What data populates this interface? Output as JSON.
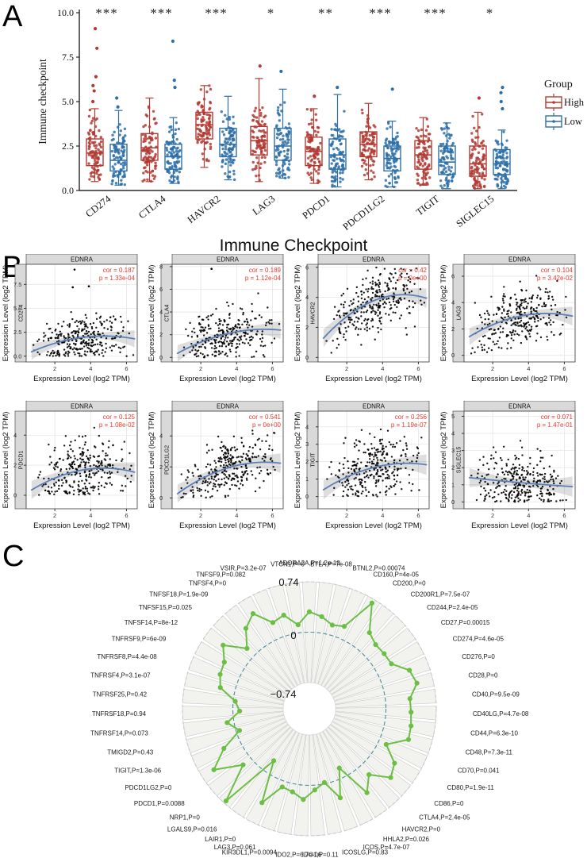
{
  "figure": {
    "panel_a_label": "A",
    "panel_b_label": "B",
    "panel_c_label": "C"
  },
  "chart_data": [
    {
      "panel": "A",
      "type": "box",
      "ylabel": "Immune checkpoint",
      "ylim": [
        0,
        10
      ],
      "ytick_labels": [
        "0.0",
        "2.5",
        "5.0",
        "7.5",
        "10.0"
      ],
      "ytick_values": [
        0,
        2.5,
        5,
        7.5,
        10
      ],
      "categories": [
        "CD274",
        "CTLA4",
        "HAVCR2",
        "LAG3",
        "PDCD1",
        "PDCD1LG2",
        "TIGIT",
        "SIGLEC15"
      ],
      "significance": [
        "***",
        "***",
        "***",
        "*",
        "**",
        "***",
        "***",
        "*"
      ],
      "legend": {
        "title": "Group",
        "items": [
          {
            "label": "High",
            "color": "#B23A32"
          },
          {
            "label": "Low",
            "color": "#2D6FA8"
          }
        ]
      },
      "series": [
        {
          "name": "High",
          "color": "#B23A32",
          "boxes": [
            {
              "q1": 1.4,
              "med": 2.1,
              "q3": 2.9,
              "lo": 0.5,
              "hi": 4.6,
              "outliers": [
                5.0,
                5.6,
                5.9,
                6.4,
                8.0,
                9.1
              ]
            },
            {
              "q1": 1.7,
              "med": 2.4,
              "q3": 3.2,
              "lo": 0.5,
              "hi": 5.2,
              "outliers": []
            },
            {
              "q1": 2.9,
              "med": 3.7,
              "q3": 4.4,
              "lo": 1.3,
              "hi": 5.9,
              "outliers": []
            },
            {
              "q1": 2.0,
              "med": 2.8,
              "q3": 3.6,
              "lo": 0.5,
              "hi": 6.3,
              "outliers": [
                7.0
              ]
            },
            {
              "q1": 1.4,
              "med": 2.2,
              "q3": 3.0,
              "lo": 0.4,
              "hi": 4.6,
              "outliers": [
                5.3
              ]
            },
            {
              "q1": 1.9,
              "med": 2.6,
              "q3": 3.3,
              "lo": 0.6,
              "hi": 4.9,
              "outliers": []
            },
            {
              "q1": 1.2,
              "med": 2.0,
              "q3": 2.8,
              "lo": 0.3,
              "hi": 4.1,
              "outliers": []
            },
            {
              "q1": 0.8,
              "med": 1.5,
              "q3": 2.5,
              "lo": 0.1,
              "hi": 4.4,
              "outliers": [
                5.2
              ]
            }
          ]
        },
        {
          "name": "Low",
          "color": "#2D6FA8",
          "boxes": [
            {
              "q1": 1.1,
              "med": 1.7,
              "q3": 2.6,
              "lo": 0.3,
              "hi": 4.5,
              "outliers": [
                4.7,
                5.2
              ]
            },
            {
              "q1": 1.2,
              "med": 1.9,
              "q3": 2.6,
              "lo": 0.4,
              "hi": 4.1,
              "outliers": [
                5.8,
                6.2,
                8.4
              ]
            },
            {
              "q1": 1.9,
              "med": 2.6,
              "q3": 3.5,
              "lo": 0.6,
              "hi": 5.3,
              "outliers": []
            },
            {
              "q1": 1.7,
              "med": 2.5,
              "q3": 3.5,
              "lo": 0.7,
              "hi": 5.7,
              "outliers": [
                6.7
              ]
            },
            {
              "q1": 1.2,
              "med": 2.0,
              "q3": 2.9,
              "lo": 0.2,
              "hi": 5.4,
              "outliers": [
                5.8
              ]
            },
            {
              "q1": 1.1,
              "med": 1.8,
              "q3": 2.5,
              "lo": 0.2,
              "hi": 3.9,
              "outliers": [
                5.7
              ]
            },
            {
              "q1": 0.9,
              "med": 1.6,
              "q3": 2.5,
              "lo": 0.1,
              "hi": 3.8,
              "outliers": []
            },
            {
              "q1": 0.9,
              "med": 1.5,
              "q3": 2.3,
              "lo": 0.1,
              "hi": 3.4,
              "outliers": [
                4.6,
                5.0,
                5.5,
                5.8
              ]
            }
          ]
        }
      ]
    },
    {
      "panel": "B",
      "type": "scatter",
      "title": "Immune Checkpoint",
      "facet_label": "EDNRA",
      "xlabel": "Expression Level (log2 TPM)",
      "ylabel": "Expression Level (log2 TPM)",
      "xticks": [
        2,
        4,
        6
      ],
      "xlim": [
        0.4,
        6.6
      ],
      "annotation_color": "#E8392C",
      "point_color": "#000000",
      "trend_color": "#5C7FB5",
      "plots": [
        {
          "gene": "CD274",
          "cor": 0.187,
          "p": "1.33e-04",
          "cor_label": "cor = 0.187",
          "p_label": "p = 1.33e-04",
          "ylim": [
            -0.6,
            9.6
          ],
          "yticks": [
            0,
            2.5,
            5,
            7.5
          ],
          "ytick_labels": [
            "0.0",
            "2.5",
            "5.0",
            "7.5"
          ],
          "trend": [
            -0.15,
            0.95,
            -0.1
          ],
          "noise": 1.05,
          "extras": [
            [
              3.1,
              9.05
            ],
            [
              3.0,
              7.2
            ],
            [
              3.9,
              7.3
            ]
          ]
        },
        {
          "gene": "CTLA4",
          "cor": 0.189,
          "p": "1.12e-04",
          "cor_label": "cor = 0.189",
          "p_label": "p = 1.12e-04",
          "ylim": [
            -0.4,
            8.2
          ],
          "yticks": [
            0,
            2,
            4,
            6,
            8
          ],
          "ytick_labels": [
            "0",
            "2",
            "4",
            "6",
            "8"
          ],
          "trend": [
            -0.3,
            1.0,
            -0.09
          ],
          "noise": 1.05,
          "extras": [
            [
              2.6,
              7.8
            ]
          ]
        },
        {
          "gene": "HAVCR2",
          "cor": 0.42,
          "p": "0e+00",
          "cor_label": "cor = 0.42",
          "p_label": "p = 0e+00",
          "ylim": [
            -0.3,
            6.2
          ],
          "yticks": [
            0,
            2,
            4,
            6
          ],
          "ytick_labels": [
            "0",
            "2",
            "4",
            "6"
          ],
          "trend": [
            0.3,
            1.5,
            -0.145
          ],
          "noise": 1.0,
          "extras": []
        },
        {
          "gene": "LAG3",
          "cor": 0.104,
          "p": "3.42e-02",
          "cor_label": "cor = 0.104",
          "p_label": "p = 3.42e-02",
          "ylim": [
            -0.5,
            6.9
          ],
          "yticks": [
            0,
            2,
            4,
            6
          ],
          "ytick_labels": [
            "0",
            "2",
            "4",
            "6"
          ],
          "trend": [
            0.8,
            0.95,
            -0.095
          ],
          "noise": 1.15,
          "extras": []
        },
        {
          "gene": "PDCD1",
          "cor": 0.125,
          "p": "1.08e-02",
          "cor_label": "cor = 0.125",
          "p_label": "p = 1.08e-02",
          "ylim": [
            -0.9,
            5.6
          ],
          "yticks": [
            0,
            2,
            4
          ],
          "ytick_labels": [
            "0",
            "2",
            "4"
          ],
          "trend": [
            -0.2,
            0.85,
            -0.09
          ],
          "noise": 1.0,
          "extras": []
        },
        {
          "gene": "PDCD1LG2",
          "cor": 0.541,
          "p": "0e+00",
          "cor_label": "cor = 0.541",
          "p_label": "p = 0e+00",
          "ylim": [
            -0.7,
            5.6
          ],
          "yticks": [
            0,
            2,
            4
          ],
          "ytick_labels": [
            "0",
            "2",
            "4"
          ],
          "trend": [
            -0.35,
            0.95,
            -0.085
          ],
          "noise": 0.8,
          "extras": []
        },
        {
          "gene": "TIGIT",
          "cor": 0.256,
          "p": "1.19e-07",
          "cor_label": "cor = 0.256",
          "p_label": "p = 1.19e-07",
          "ylim": [
            -0.7,
            4.9
          ],
          "yticks": [
            0,
            1,
            2,
            3,
            4
          ],
          "ytick_labels": [
            "0",
            "1",
            "2",
            "3",
            "4"
          ],
          "trend": [
            -0.1,
            0.75,
            -0.07
          ],
          "noise": 0.9,
          "extras": []
        },
        {
          "gene": "SIGLEC15",
          "cor": 0.071,
          "p": "1.47e-01",
          "cor_label": "cor = 0.071",
          "p_label": "p = 1.47e-01",
          "ylim": [
            -0.4,
            5.3
          ],
          "yticks": [
            0,
            1,
            2,
            3,
            4,
            5
          ],
          "ytick_labels": [
            "0",
            "1",
            "2",
            "3",
            "4",
            "5"
          ],
          "trend": [
            1.5,
            -0.12,
            0.004
          ],
          "noise": 0.85,
          "extras": []
        }
      ]
    },
    {
      "panel": "C",
      "type": "radar",
      "rlim": [
        -0.74,
        0.74
      ],
      "rtick_labels": [
        "0.74",
        "0",
        "−0.74"
      ],
      "line_color": "#6CBE45",
      "zero_ring_color": "#4D8C9B",
      "genes": [
        {
          "label": "ADORA2A,P=1.2e-10",
          "value": 0.3
        },
        {
          "label": "BTLA,P=7e-08",
          "value": 0.24
        },
        {
          "label": "BTNL2,P=0.00074",
          "value": 0.15
        },
        {
          "label": "CD160,P=4e-05",
          "value": 0.19
        },
        {
          "label": "CD200,P=0",
          "value": 0.68
        },
        {
          "label": "CD200R1,P=7.5e-07",
          "value": 0.3
        },
        {
          "label": "CD244,P=2.4e-05",
          "value": 0.23
        },
        {
          "label": "CD27,P=0.00015",
          "value": 0.24
        },
        {
          "label": "CD274,P=4.6e-05",
          "value": 0.25
        },
        {
          "label": "CD276,P=0",
          "value": 0.45
        },
        {
          "label": "CD28,P=0",
          "value": 0.5
        },
        {
          "label": "CD40,P=9.5e-09",
          "value": 0.36
        },
        {
          "label": "CD40LG,P=4.7e-08",
          "value": 0.37
        },
        {
          "label": "CD44,P=6.3e-10",
          "value": 0.39
        },
        {
          "label": "CD48,P=7.3e-11",
          "value": 0.4
        },
        {
          "label": "CD70,P=0.041",
          "value": 0.12
        },
        {
          "label": "CD80,P=1.9e-11",
          "value": 0.36
        },
        {
          "label": "CD86,P=0",
          "value": 0.44
        },
        {
          "label": "CTLA4,P=2.4e-05",
          "value": 0.18
        },
        {
          "label": "HAVCR2,P=0",
          "value": 0.37
        },
        {
          "label": "HHLA2,P=0.026",
          "value": -0.15
        },
        {
          "label": "ICOS,P=4.7e-07",
          "value": 0.26
        },
        {
          "label": "ICOSLG,P=0.83",
          "value": -0.02
        },
        {
          "label": "IDO1,P=0.11",
          "value": 0.07
        },
        {
          "label": "IDO2,P=6.7e-06",
          "value": 0.21
        },
        {
          "label": "KIR3DL1,P=0.0094",
          "value": 0.12
        },
        {
          "label": "LAG3,P=0.061",
          "value": 0.09
        },
        {
          "label": "LAIR1,P=0",
          "value": 0.42
        },
        {
          "label": "LGALS9,P=0.016",
          "value": -0.2
        },
        {
          "label": "NRP1,P=0",
          "value": 0.7
        },
        {
          "label": "PDCD1,P=0.0088",
          "value": 0.15
        },
        {
          "label": "PDCD1LG2,P=0",
          "value": 0.54
        },
        {
          "label": "TIGIT,P=1.3e-06",
          "value": 0.26
        },
        {
          "label": "TMIGD2,P=0.43",
          "value": -0.05
        },
        {
          "label": "TNFRSF14,P=0.073",
          "value": 0.1
        },
        {
          "label": "TNFRSF18,P=0.94",
          "value": -0.1
        },
        {
          "label": "TNFRSF25,P=0.42",
          "value": -0.03
        },
        {
          "label": "TNFRSF4,P=3.1e-07",
          "value": 0.22
        },
        {
          "label": "TNFRSF8,P=4.4e-08",
          "value": 0.28
        },
        {
          "label": "TNFRSF9,P=6e-09",
          "value": 0.3
        },
        {
          "label": "TNFSF14,P=8e-12",
          "value": 0.45
        },
        {
          "label": "TNFSF15,P=0.025",
          "value": 0.15
        },
        {
          "label": "TNFSF18,P=1.9e-09",
          "value": 0.38
        },
        {
          "label": "TNFSF4,P=0",
          "value": 0.5
        },
        {
          "label": "TNFSF9,P=0.082",
          "value": 0.25
        },
        {
          "label": "VSIR,P=3.2e-07",
          "value": 0.3
        },
        {
          "label": "VTCN1,P=0",
          "value": 0.12
        }
      ]
    }
  ]
}
